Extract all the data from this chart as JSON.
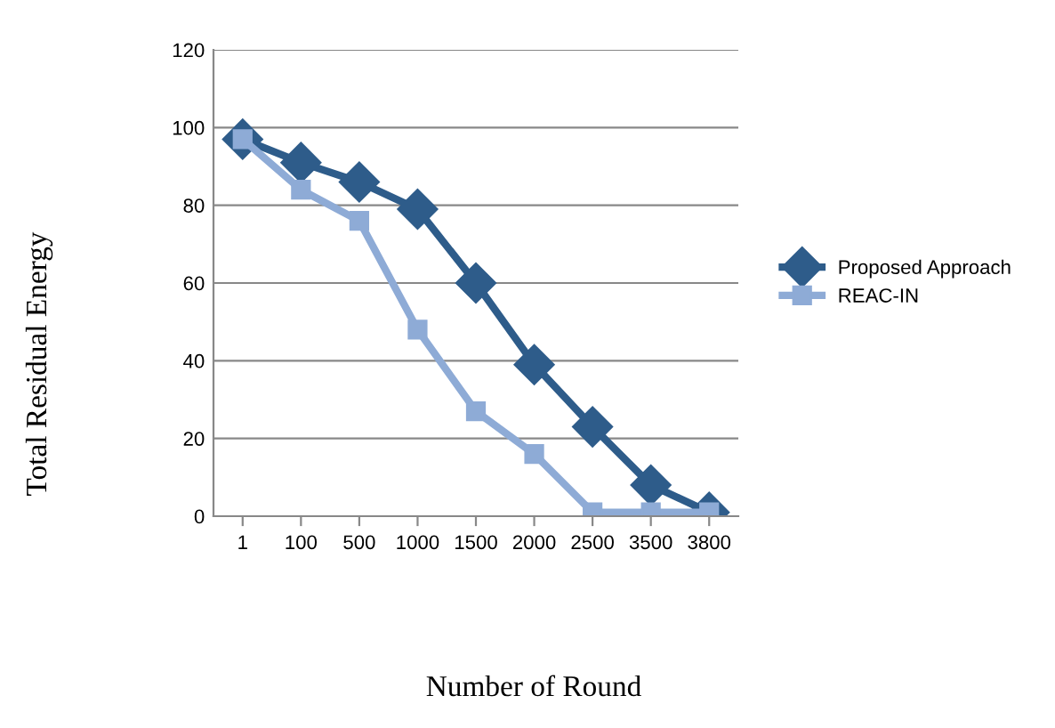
{
  "chart_data": {
    "type": "line",
    "xlabel": "Number of Round",
    "ylabel": "Total Residual Energy",
    "categories": [
      "1",
      "100",
      "500",
      "1000",
      "1500",
      "2000",
      "2500",
      "3500",
      "3800"
    ],
    "series": [
      {
        "name": "Proposed Approach",
        "color": "#2e5c8a",
        "marker": "diamond",
        "values": [
          97,
          91,
          86,
          79,
          60,
          39,
          23,
          8,
          1
        ]
      },
      {
        "name": "REAC-IN",
        "color": "#8eabd6",
        "marker": "square",
        "values": [
          97,
          84,
          76,
          48,
          27,
          16,
          1,
          1,
          1
        ]
      }
    ],
    "ylim": [
      0,
      120
    ],
    "yticks": [
      0,
      20,
      40,
      60,
      80,
      100,
      120
    ],
    "grid": "y",
    "legend": "right",
    "line_style": "solid"
  }
}
